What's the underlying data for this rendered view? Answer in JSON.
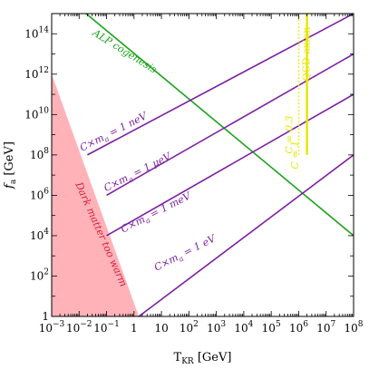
{
  "chart_data": {
    "type": "line",
    "xlabel": "T_KR [GeV]",
    "ylabel": "f_a [GeV]",
    "x_scale": "log",
    "y_scale": "log",
    "xlim": [
      0.001,
      100000000
    ],
    "ylim": [
      1,
      1000000000000000
    ],
    "x_ticks": [
      {
        "value": 0.001,
        "mant": "10",
        "exp": "−3"
      },
      {
        "value": 0.01,
        "mant": "10",
        "exp": "−2"
      },
      {
        "value": 0.1,
        "mant": "10",
        "exp": "−1"
      },
      {
        "value": 1,
        "mant": "1",
        "exp": ""
      },
      {
        "value": 10,
        "mant": "10",
        "exp": ""
      },
      {
        "value": 100,
        "mant": "10",
        "exp": "2"
      },
      {
        "value": 1000,
        "mant": "10",
        "exp": "3"
      },
      {
        "value": 10000,
        "mant": "10",
        "exp": "4"
      },
      {
        "value": 100000,
        "mant": "10",
        "exp": "5"
      },
      {
        "value": 1000000,
        "mant": "10",
        "exp": "6"
      },
      {
        "value": 10000000,
        "mant": "10",
        "exp": "7"
      },
      {
        "value": 100000000,
        "mant": "10",
        "exp": "8"
      }
    ],
    "y_ticks": [
      {
        "value": 1,
        "mant": "1",
        "exp": ""
      },
      {
        "value": 100,
        "mant": "10",
        "exp": "2"
      },
      {
        "value": 10000,
        "mant": "10",
        "exp": "4"
      },
      {
        "value": 1000000,
        "mant": "10",
        "exp": "6"
      },
      {
        "value": 100000000,
        "mant": "10",
        "exp": "8"
      },
      {
        "value": 10000000000,
        "mant": "10",
        "exp": "10"
      },
      {
        "value": 1000000000000,
        "mant": "10",
        "exp": "12"
      },
      {
        "value": 100000000000000,
        "mant": "10",
        "exp": "14"
      }
    ],
    "colors": {
      "purple": "#7b1fa2",
      "green": "#1aa31a",
      "yellow": "#e6e600",
      "region": "#ffb3b8",
      "region_text": "#d81b3a"
    },
    "series": [
      {
        "name": "ALP cogenesis",
        "color": "#1aa31a",
        "points": [
          [
            0.018,
            1000000000000000
          ],
          [
            100000000,
            10000
          ]
        ]
      },
      {
        "name": "C×m_a = 1 neV",
        "color": "#7b1fa2",
        "points": [
          [
            0.02,
            100000000
          ],
          [
            100000000,
            1000000000000000
          ]
        ]
      },
      {
        "name": "C×m_a = 1 μeV",
        "color": "#7b1fa2",
        "points": [
          [
            0.1,
            1000000
          ],
          [
            100000000,
            10000000000000
          ]
        ]
      },
      {
        "name": "C×m_a = 1 meV",
        "color": "#7b1fa2",
        "points": [
          [
            0.1,
            10000
          ],
          [
            100000000,
            100000000000
          ]
        ]
      },
      {
        "name": "C×m_a = 1 eV",
        "color": "#7b1fa2",
        "points": [
          [
            1.5,
            1
          ],
          [
            100000000,
            100000000
          ]
        ]
      },
      {
        "name": "C = 0.3",
        "color": "#e6e600",
        "style": "dotted",
        "points": [
          [
            1000000,
            100000000
          ],
          [
            1000000,
            1000000000000000
          ]
        ]
      },
      {
        "name": "C = 1",
        "color": "#e6e600",
        "points": [
          [
            2000000,
            100000000
          ],
          [
            2000000,
            1000000000000000
          ]
        ]
      }
    ],
    "regions": [
      {
        "name": "Dark matter too warm",
        "color": "#ffb3b8",
        "points": [
          [
            0.001,
            1000000000000
          ],
          [
            1.5,
            1
          ],
          [
            0.001,
            1
          ]
        ]
      }
    ],
    "annotations": [
      {
        "key": "alp",
        "text": "ALP cogenesis",
        "x": 0.4,
        "y": 10000000000000,
        "rotate": 32,
        "color": "#1aa31a"
      },
      {
        "key": "nev",
        "text": "C×m_a = 1 neV",
        "x": 0.2,
        "y": 1000000000,
        "rotate": -27,
        "color": "#7b1fa2"
      },
      {
        "key": "uev",
        "text": "C×m_a = 1 μeV",
        "x": 1.5,
        "y": 10000000,
        "rotate": -27,
        "color": "#7b1fa2"
      },
      {
        "key": "mev",
        "text": "C×m_a = 1 meV",
        "x": 7,
        "y": 100000,
        "rotate": -27,
        "color": "#7b1fa2"
      },
      {
        "key": "ev",
        "text": "C×m_a = 1 eV",
        "x": 80,
        "y": 1000,
        "rotate": -27,
        "color": "#7b1fa2"
      },
      {
        "key": "warm",
        "text": "Dark matter too warm",
        "x": 0.05,
        "y": 10000,
        "rotate": 66,
        "color": "#d81b3a"
      },
      {
        "key": "qcd",
        "text": "QCD axion",
        "x": 2500000,
        "y": 10000000000000,
        "rotate": -90,
        "color": "#e6e600"
      },
      {
        "key": "c03",
        "text": "C = 0.3",
        "x": 600000,
        "y": 1000000000,
        "rotate": -90,
        "color": "#e6e600"
      },
      {
        "key": "c1",
        "text": "C = 1",
        "x": 950000,
        "y": 100000000,
        "rotate": -90,
        "color": "#e6e600"
      }
    ]
  }
}
